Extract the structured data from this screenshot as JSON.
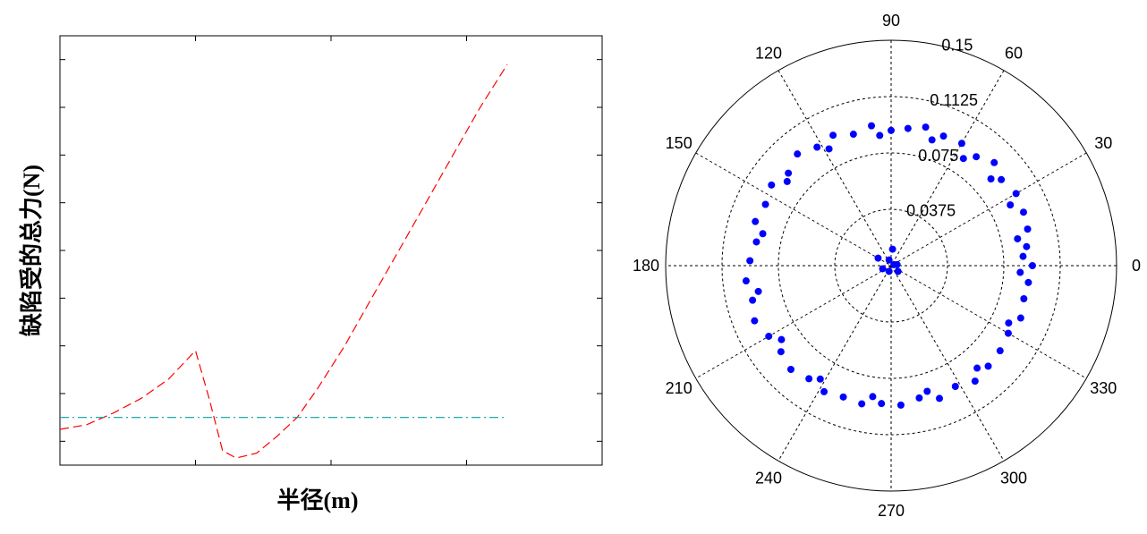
{
  "chart_data": [
    {
      "type": "line",
      "xlabel": "半径(m)",
      "ylabel": "缺陷受的总力(N)",
      "xlim": [
        0,
        4
      ],
      "ylim": [
        -0.5,
        8.5
      ],
      "tick_labels_shown": false,
      "series": [
        {
          "style": "dashed",
          "color": "#ff0000",
          "x": [
            0,
            0.2,
            0.4,
            0.6,
            0.8,
            1.0,
            1.1,
            1.2,
            1.3,
            1.45,
            1.6,
            1.75,
            1.9,
            2.1,
            2.3,
            2.5,
            2.7,
            2.9,
            3.1,
            3.3
          ],
          "y": [
            0.25,
            0.35,
            0.6,
            0.9,
            1.3,
            1.9,
            0.9,
            -0.2,
            -0.35,
            -0.25,
            0.1,
            0.5,
            1.1,
            2.0,
            3.0,
            4.0,
            5.0,
            6.0,
            7.0,
            7.9
          ]
        },
        {
          "style": "dashdot",
          "color": "#00a0a0",
          "x": [
            0,
            3.3
          ],
          "y": [
            0.5,
            0.5
          ]
        }
      ]
    },
    {
      "type": "scatter",
      "subtype": "polar",
      "rlim": [
        0,
        0.15
      ],
      "r_ticks": [
        "0.0375",
        "0.075",
        "0.1125",
        "0.15"
      ],
      "theta_ticks": [
        "0",
        "30",
        "60",
        "90",
        "120",
        "150",
        "180",
        "210",
        "240",
        "270",
        "300",
        "330"
      ],
      "marker_color": "#0000ff",
      "points": [
        [
          0,
          0.094
        ],
        [
          8,
          0.091
        ],
        [
          15,
          0.094
        ],
        [
          22,
          0.095
        ],
        [
          30,
          0.096
        ],
        [
          38,
          0.093
        ],
        [
          45,
          0.097
        ],
        [
          52,
          0.092
        ],
        [
          60,
          0.094
        ],
        [
          68,
          0.093
        ],
        [
          76,
          0.095
        ],
        [
          83,
          0.092
        ],
        [
          90,
          0.09
        ],
        [
          98,
          0.094
        ],
        [
          106,
          0.091
        ],
        [
          114,
          0.095
        ],
        [
          122,
          0.093
        ],
        [
          130,
          0.097
        ],
        [
          138,
          0.092
        ],
        [
          146,
          0.096
        ],
        [
          154,
          0.093
        ],
        [
          162,
          0.095
        ],
        [
          170,
          0.091
        ],
        [
          178,
          0.094
        ],
        [
          186,
          0.097
        ],
        [
          194,
          0.095
        ],
        [
          202,
          0.098
        ],
        [
          210,
          0.094
        ],
        [
          218,
          0.093
        ],
        [
          226,
          0.096
        ],
        [
          234,
          0.093
        ],
        [
          242,
          0.095
        ],
        [
          250,
          0.093
        ],
        [
          258,
          0.094
        ],
        [
          266,
          0.092
        ],
        [
          274,
          0.093
        ],
        [
          282,
          0.09
        ],
        [
          290,
          0.094
        ],
        [
          298,
          0.091
        ],
        [
          306,
          0.095
        ],
        [
          314,
          0.093
        ],
        [
          322,
          0.092
        ],
        [
          330,
          0.09
        ],
        [
          338,
          0.093
        ],
        [
          346,
          0.091
        ],
        [
          353,
          0.092
        ],
        [
          4,
          0.088
        ],
        [
          12,
          0.086
        ],
        [
          27,
          0.089
        ],
        [
          41,
          0.088
        ],
        [
          56,
          0.086
        ],
        [
          72,
          0.088
        ],
        [
          95,
          0.087
        ],
        [
          118,
          0.088
        ],
        [
          141,
          0.089
        ],
        [
          166,
          0.088
        ],
        [
          191,
          0.09
        ],
        [
          214,
          0.088
        ],
        [
          238,
          0.089
        ],
        [
          262,
          0.088
        ],
        [
          286,
          0.087
        ],
        [
          310,
          0.089
        ],
        [
          334,
          0.087
        ],
        [
          357,
          0.086
        ],
        [
          85,
          0.011
        ],
        [
          150,
          0.01
        ],
        [
          200,
          0.006
        ],
        [
          250,
          0.004
        ],
        [
          320,
          0.006
        ],
        [
          10,
          0.004
        ],
        [
          110,
          0.004
        ],
        [
          20,
          0.002
        ]
      ]
    }
  ]
}
